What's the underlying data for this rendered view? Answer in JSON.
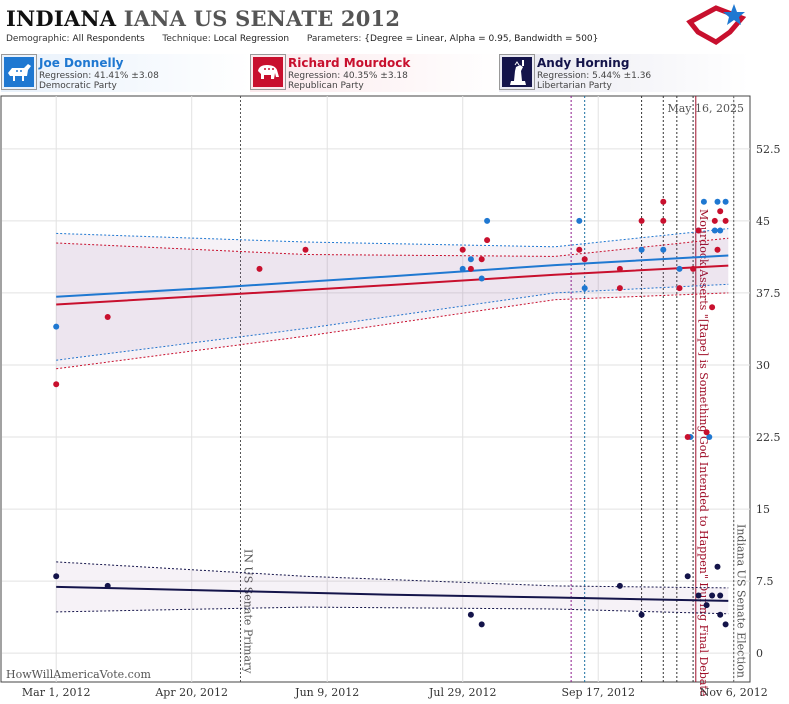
{
  "header": {
    "title_state": "INDIANA",
    "title_race": "IANA US SENATE 2012",
    "demographic_label": "Demographic:",
    "demographic_value": "All Respondents",
    "technique_label": "Technique:",
    "technique_value": "Local Regression",
    "parameters_label": "Parameters:",
    "parameters_value": "{Degree = Linear, Alpha = 0.95, Bandwidth = 500}"
  },
  "candidates": [
    {
      "name": "Joe Donnelly",
      "regression": "Regression: 41.41% ±3.08",
      "party": "Democratic Party",
      "color": "#1f78d1",
      "icon": "donkey-icon"
    },
    {
      "name": "Richard Mourdock",
      "regression": "Regression: 40.35% ±3.18",
      "party": "Republican Party",
      "color": "#c8102e",
      "icon": "elephant-icon"
    },
    {
      "name": "Andy Horning",
      "regression": "Regression: 5.44% ±1.36",
      "party": "Libertarian Party",
      "color": "#14144a",
      "icon": "statue-of-liberty-icon"
    }
  ],
  "datestamp": "May 16, 2025",
  "credit": "HowWillAmericaVote.com",
  "chart_data": {
    "type": "scatter",
    "x_tick_labels": [
      "Mar 1, 2012",
      "Apr 20, 2012",
      "Jun 9, 2012",
      "Jul 29, 2012",
      "Sep 17, 2012",
      "Nov 6, 2012"
    ],
    "x_range": [
      "2012-02-10",
      "2012-11-12"
    ],
    "y_ticks": [
      0,
      7.5,
      15,
      22.5,
      30,
      37.5,
      45,
      52.5
    ],
    "y_range": [
      -3,
      58
    ],
    "grid": true,
    "events": [
      {
        "date": "2012-05-08",
        "label": "IN US Senate Primary",
        "color": "#555555",
        "style": "dashed"
      },
      {
        "date": "2012-09-07",
        "label": "",
        "color": "#8b1a8b",
        "style": "dashed"
      },
      {
        "date": "2012-09-12",
        "label": "",
        "color": "#1a6fa0",
        "style": "dashed"
      },
      {
        "date": "2012-10-03",
        "label": "",
        "color": "#333333",
        "style": "dashed"
      },
      {
        "date": "2012-10-11",
        "label": "",
        "color": "#333333",
        "style": "dashed"
      },
      {
        "date": "2012-10-16",
        "label": "",
        "color": "#333333",
        "style": "dashed"
      },
      {
        "date": "2012-10-22",
        "label": "",
        "color": "#333333",
        "style": "dashed"
      },
      {
        "date": "2012-10-23",
        "label": "Mourdock Asserts \"[Rape] is Something God Intended to Happen\" During Final Debate",
        "color": "#a0102a",
        "style": "solid"
      },
      {
        "date": "2012-11-06",
        "label": "Indiana US Senate Election",
        "color": "#555555",
        "style": "dashed"
      }
    ],
    "series": [
      {
        "name": "Joe Donnelly",
        "color": "#1f78d1",
        "points": [
          [
            "2012-03-01",
            34
          ],
          [
            "2012-07-29",
            40
          ],
          [
            "2012-08-01",
            41
          ],
          [
            "2012-08-05",
            39
          ],
          [
            "2012-08-07",
            45
          ],
          [
            "2012-09-10",
            45
          ],
          [
            "2012-09-12",
            38
          ],
          [
            "2012-10-03",
            42
          ],
          [
            "2012-10-11",
            42
          ],
          [
            "2012-10-17",
            40
          ],
          [
            "2012-10-21",
            22.5
          ],
          [
            "2012-10-24",
            44
          ],
          [
            "2012-10-26",
            47
          ],
          [
            "2012-10-28",
            22.5
          ],
          [
            "2012-10-30",
            44
          ],
          [
            "2012-10-31",
            47
          ],
          [
            "2012-11-01",
            44
          ],
          [
            "2012-11-03",
            47
          ]
        ],
        "trend": [
          [
            "2012-03-01",
            37.1
          ],
          [
            "2012-05-01",
            38.1
          ],
          [
            "2012-07-01",
            39.2
          ],
          [
            "2012-09-01",
            40.4
          ],
          [
            "2012-11-04",
            41.4
          ]
        ],
        "band_upper": [
          [
            "2012-03-01",
            43.7
          ],
          [
            "2012-06-01",
            42.8
          ],
          [
            "2012-09-01",
            42.3
          ],
          [
            "2012-11-04",
            44.2
          ]
        ],
        "band_lower": [
          [
            "2012-03-01",
            30.5
          ],
          [
            "2012-06-01",
            33.8
          ],
          [
            "2012-09-01",
            37.5
          ],
          [
            "2012-11-04",
            38.4
          ]
        ]
      },
      {
        "name": "Richard Mourdock",
        "color": "#c8102e",
        "points": [
          [
            "2012-03-01",
            28
          ],
          [
            "2012-03-20",
            35
          ],
          [
            "2012-05-15",
            40
          ],
          [
            "2012-06-01",
            42
          ],
          [
            "2012-07-29",
            42
          ],
          [
            "2012-08-01",
            40
          ],
          [
            "2012-08-05",
            41
          ],
          [
            "2012-08-07",
            43
          ],
          [
            "2012-09-10",
            42
          ],
          [
            "2012-09-12",
            41
          ],
          [
            "2012-09-25",
            38
          ],
          [
            "2012-09-25",
            40
          ],
          [
            "2012-10-03",
            45
          ],
          [
            "2012-10-11",
            45
          ],
          [
            "2012-10-11",
            47
          ],
          [
            "2012-10-17",
            38
          ],
          [
            "2012-10-20",
            22.5
          ],
          [
            "2012-10-22",
            40
          ],
          [
            "2012-10-24",
            44
          ],
          [
            "2012-10-27",
            23
          ],
          [
            "2012-10-29",
            36
          ],
          [
            "2012-10-30",
            45
          ],
          [
            "2012-10-31",
            42
          ],
          [
            "2012-11-01",
            46
          ],
          [
            "2012-11-03",
            45
          ]
        ],
        "trend": [
          [
            "2012-03-01",
            36.3
          ],
          [
            "2012-05-01",
            37.3
          ],
          [
            "2012-07-01",
            38.3
          ],
          [
            "2012-09-01",
            39.4
          ],
          [
            "2012-11-04",
            40.35
          ]
        ],
        "band_upper": [
          [
            "2012-03-01",
            42.7
          ],
          [
            "2012-06-01",
            41.5
          ],
          [
            "2012-09-01",
            41.3
          ],
          [
            "2012-11-04",
            43.2
          ]
        ],
        "band_lower": [
          [
            "2012-03-01",
            29.6
          ],
          [
            "2012-06-01",
            33.0
          ],
          [
            "2012-09-01",
            36.8
          ],
          [
            "2012-11-04",
            37.5
          ]
        ]
      },
      {
        "name": "Andy Horning",
        "color": "#14144a",
        "points": [
          [
            "2012-03-01",
            8
          ],
          [
            "2012-03-20",
            7
          ],
          [
            "2012-08-01",
            4
          ],
          [
            "2012-08-05",
            3
          ],
          [
            "2012-09-25",
            7
          ],
          [
            "2012-10-03",
            4
          ],
          [
            "2012-10-20",
            8
          ],
          [
            "2012-10-24",
            6
          ],
          [
            "2012-10-27",
            5
          ],
          [
            "2012-10-29",
            6
          ],
          [
            "2012-10-31",
            9
          ],
          [
            "2012-11-01",
            6
          ],
          [
            "2012-11-01",
            4
          ],
          [
            "2012-11-03",
            3
          ]
        ],
        "trend": [
          [
            "2012-03-01",
            6.9
          ],
          [
            "2012-05-01",
            6.5
          ],
          [
            "2012-07-01",
            6.1
          ],
          [
            "2012-09-01",
            5.8
          ],
          [
            "2012-11-04",
            5.44
          ]
        ],
        "band_upper": [
          [
            "2012-03-01",
            9.5
          ],
          [
            "2012-06-01",
            8.0
          ],
          [
            "2012-09-01",
            7.0
          ],
          [
            "2012-11-04",
            6.8
          ]
        ],
        "band_lower": [
          [
            "2012-03-01",
            4.3
          ],
          [
            "2012-06-01",
            4.8
          ],
          [
            "2012-09-01",
            4.6
          ],
          [
            "2012-11-04",
            4.1
          ]
        ]
      }
    ]
  }
}
